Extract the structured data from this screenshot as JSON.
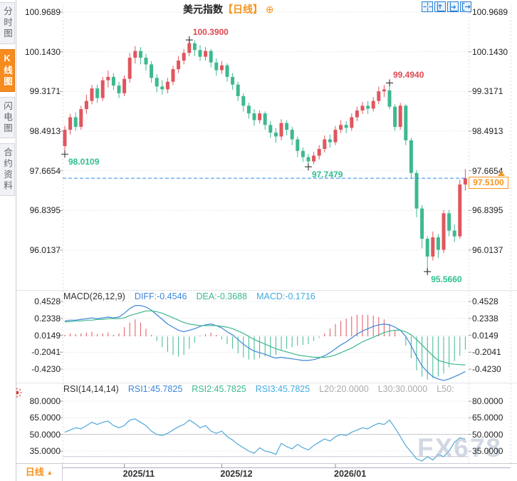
{
  "watermark": "FX678",
  "sidebar": {
    "items": [
      {
        "key": "timeshare",
        "label": "分时图",
        "active": false
      },
      {
        "key": "kline",
        "label": "K线图",
        "active": true
      },
      {
        "key": "lightning",
        "label": "闪电图",
        "active": false
      },
      {
        "key": "contract-info",
        "label": "合约资料",
        "active": false
      }
    ]
  },
  "header": {
    "instrument": "美元指数",
    "period": "【日线】",
    "plus": "⊕"
  },
  "toolbar": {
    "icons": [
      "crosshair-tool",
      "y-axis-fit",
      "x-axis-fit",
      "detach-window"
    ]
  },
  "bottom_bar": {
    "period_label": "日线",
    "arrow": "▲"
  },
  "colors": {
    "accent_orange": "#f7941d",
    "up_red": "#e0565e",
    "down_green": "#3eb98f",
    "anno_red": "#e0474f",
    "anno_teal": "#2ebf92",
    "diff_blue": "#3d86d8",
    "dea_green": "#3cb98c",
    "macd_cyan": "#41acdf",
    "rsi_line": "#4fa8d8",
    "current_line_blue": "#2f8be4",
    "muted_gray": "#aaaaaa"
  },
  "chart_data": [
    {
      "type": "candlestick",
      "panel": "price",
      "y_axis_labels": [
        "100.9689",
        "100.1430",
        "99.3171",
        "98.4913",
        "97.6654",
        "96.8395",
        "96.0137"
      ],
      "x_axis_ticks": [
        {
          "label": "2025/11",
          "index": 11
        },
        {
          "label": "2025/12",
          "index": 29
        },
        {
          "label": "2026/01",
          "index": 50
        }
      ],
      "current_price": "97.5100",
      "annotations": [
        {
          "text": "100.3900",
          "index": 23,
          "price": 100.39,
          "direction": "up"
        },
        {
          "text": "98.0109",
          "index": 0,
          "price": 98.0109,
          "direction": "down"
        },
        {
          "text": "99.4940",
          "index": 60,
          "price": 99.494,
          "direction": "up"
        },
        {
          "text": "97.7479",
          "index": 45,
          "price": 97.7479,
          "direction": "down"
        },
        {
          "text": "95.5660",
          "index": 67,
          "price": 95.566,
          "direction": "down"
        }
      ],
      "candles_ohlc": [
        [
          98.18,
          98.6,
          98.0109,
          98.52
        ],
        [
          98.52,
          98.85,
          98.42,
          98.78
        ],
        [
          98.78,
          98.88,
          98.5,
          98.58
        ],
        [
          98.58,
          99.02,
          98.52,
          98.95
        ],
        [
          98.95,
          99.25,
          98.85,
          99.12
        ],
        [
          99.12,
          99.45,
          99.05,
          99.38
        ],
        [
          99.38,
          99.46,
          99.08,
          99.18
        ],
        [
          99.18,
          99.62,
          99.12,
          99.55
        ],
        [
          99.55,
          99.75,
          99.4,
          99.62
        ],
        [
          99.62,
          99.7,
          99.35,
          99.44
        ],
        [
          99.44,
          99.52,
          99.18,
          99.28
        ],
        [
          99.28,
          99.65,
          99.22,
          99.58
        ],
        [
          99.58,
          100.12,
          99.5,
          100.02
        ],
        [
          100.02,
          100.26,
          99.9,
          100.16
        ],
        [
          100.16,
          100.24,
          99.88,
          100.02
        ],
        [
          100.02,
          100.1,
          99.75,
          99.88
        ],
        [
          99.88,
          99.95,
          99.5,
          99.6
        ],
        [
          99.6,
          99.68,
          99.3,
          99.42
        ],
        [
          99.42,
          99.55,
          99.25,
          99.36
        ],
        [
          99.36,
          99.6,
          99.28,
          99.52
        ],
        [
          99.52,
          99.85,
          99.45,
          99.78
        ],
        [
          99.78,
          100.05,
          99.7,
          99.96
        ],
        [
          99.96,
          100.2,
          99.88,
          100.12
        ],
        [
          100.12,
          100.39,
          100.05,
          100.32
        ],
        [
          100.32,
          100.38,
          100.05,
          100.18
        ],
        [
          100.18,
          100.28,
          99.95,
          100.04
        ],
        [
          100.04,
          100.24,
          99.96,
          100.16
        ],
        [
          100.16,
          100.2,
          99.82,
          99.92
        ],
        [
          99.92,
          100.0,
          99.65,
          99.76
        ],
        [
          99.76,
          99.95,
          99.68,
          99.86
        ],
        [
          99.86,
          99.9,
          99.52,
          99.62
        ],
        [
          99.62,
          99.7,
          99.35,
          99.46
        ],
        [
          99.46,
          99.52,
          99.12,
          99.22
        ],
        [
          99.22,
          99.28,
          98.9,
          99.02
        ],
        [
          99.02,
          99.08,
          98.75,
          98.86
        ],
        [
          98.86,
          98.95,
          98.6,
          98.72
        ],
        [
          98.72,
          98.92,
          98.65,
          98.86
        ],
        [
          98.86,
          98.9,
          98.52,
          98.62
        ],
        [
          98.62,
          98.7,
          98.35,
          98.46
        ],
        [
          98.46,
          98.55,
          98.25,
          98.38
        ],
        [
          98.38,
          98.74,
          98.3,
          98.66
        ],
        [
          98.66,
          98.72,
          98.4,
          98.52
        ],
        [
          98.52,
          98.58,
          98.2,
          98.32
        ],
        [
          98.32,
          98.38,
          97.95,
          98.08
        ],
        [
          98.08,
          98.15,
          97.85,
          97.95
        ],
        [
          97.95,
          98.02,
          97.7479,
          97.86
        ],
        [
          97.86,
          98.06,
          97.8,
          97.98
        ],
        [
          97.98,
          98.2,
          97.9,
          98.12
        ],
        [
          98.12,
          98.4,
          98.05,
          98.32
        ],
        [
          98.32,
          98.42,
          98.15,
          98.26
        ],
        [
          98.26,
          98.6,
          98.2,
          98.52
        ],
        [
          98.52,
          98.72,
          98.45,
          98.62
        ],
        [
          98.62,
          98.7,
          98.45,
          98.56
        ],
        [
          98.56,
          98.86,
          98.5,
          98.78
        ],
        [
          98.78,
          99.0,
          98.7,
          98.92
        ],
        [
          98.92,
          99.1,
          98.85,
          99.02
        ],
        [
          99.02,
          99.12,
          98.85,
          98.96
        ],
        [
          98.96,
          99.2,
          98.9,
          99.12
        ],
        [
          99.12,
          99.42,
          99.05,
          99.32
        ],
        [
          99.32,
          99.45,
          99.2,
          99.36
        ],
        [
          99.34,
          99.494,
          98.95,
          99.0
        ],
        [
          99.0,
          99.05,
          98.5,
          98.58
        ],
        [
          98.58,
          99.08,
          98.52,
          99.02
        ],
        [
          99.02,
          99.05,
          98.2,
          98.3
        ],
        [
          98.3,
          98.35,
          97.5,
          97.62
        ],
        [
          97.62,
          97.68,
          96.7,
          96.88
        ],
        [
          96.88,
          96.95,
          96.05,
          96.25
        ],
        [
          96.25,
          96.3,
          95.566,
          95.88
        ],
        [
          95.88,
          96.4,
          95.8,
          96.28
        ],
        [
          96.28,
          96.35,
          95.85,
          96.02
        ],
        [
          96.02,
          96.85,
          95.95,
          96.78
        ],
        [
          96.78,
          96.85,
          96.3,
          96.42
        ],
        [
          96.42,
          96.55,
          96.18,
          96.3
        ],
        [
          96.3,
          97.48,
          96.25,
          97.38
        ],
        [
          97.38,
          97.7,
          97.25,
          97.51
        ]
      ]
    },
    {
      "type": "macd",
      "title": "MACD(26,12,9)",
      "legend": [
        {
          "text": "DIFF:-0.4546",
          "color_key": "diff_blue"
        },
        {
          "text": "DEA:-0.3688",
          "color_key": "dea_green"
        },
        {
          "text": "MACD:-0.1716",
          "color_key": "macd_cyan"
        }
      ],
      "y_axis_labels": [
        "0.4528",
        "0.2338",
        "0.0149",
        "-0.2041",
        "-0.4230"
      ],
      "diff": [
        0.2,
        0.21,
        0.21,
        0.22,
        0.23,
        0.24,
        0.23,
        0.24,
        0.25,
        0.24,
        0.25,
        0.3,
        0.36,
        0.4,
        0.4,
        0.38,
        0.34,
        0.28,
        0.22,
        0.16,
        0.12,
        0.08,
        0.06,
        0.08,
        0.1,
        0.13,
        0.15,
        0.16,
        0.14,
        0.11,
        0.06,
        0.02,
        -0.04,
        -0.1,
        -0.15,
        -0.19,
        -0.21,
        -0.23,
        -0.26,
        -0.28,
        -0.27,
        -0.28,
        -0.29,
        -0.3,
        -0.31,
        -0.31,
        -0.3,
        -0.28,
        -0.25,
        -0.21,
        -0.16,
        -0.11,
        -0.07,
        -0.02,
        0.03,
        0.07,
        0.1,
        0.13,
        0.15,
        0.16,
        0.15,
        0.12,
        0.08,
        0.0,
        -0.12,
        -0.26,
        -0.38,
        -0.46,
        -0.52,
        -0.55,
        -0.57,
        -0.55,
        -0.52,
        -0.49,
        -0.4546
      ],
      "dea": [
        0.19,
        0.19,
        0.2,
        0.2,
        0.21,
        0.21,
        0.22,
        0.22,
        0.23,
        0.23,
        0.23,
        0.24,
        0.27,
        0.29,
        0.31,
        0.33,
        0.33,
        0.32,
        0.3,
        0.27,
        0.24,
        0.21,
        0.18,
        0.16,
        0.15,
        0.14,
        0.14,
        0.14,
        0.14,
        0.13,
        0.12,
        0.1,
        0.07,
        0.04,
        0.0,
        -0.04,
        -0.07,
        -0.1,
        -0.13,
        -0.16,
        -0.18,
        -0.2,
        -0.22,
        -0.24,
        -0.25,
        -0.26,
        -0.27,
        -0.27,
        -0.27,
        -0.26,
        -0.24,
        -0.21,
        -0.18,
        -0.15,
        -0.11,
        -0.07,
        -0.04,
        -0.01,
        0.02,
        0.05,
        0.07,
        0.08,
        0.08,
        0.06,
        0.02,
        -0.04,
        -0.11,
        -0.18,
        -0.25,
        -0.31,
        -0.33,
        -0.35,
        -0.36,
        -0.365,
        -0.3688
      ],
      "histogram": [
        0.02,
        0.04,
        0.03,
        0.04,
        0.05,
        0.06,
        0.03,
        0.04,
        0.05,
        0.02,
        0.04,
        0.12,
        0.18,
        0.22,
        0.18,
        0.1,
        0.02,
        -0.06,
        -0.14,
        -0.2,
        -0.24,
        -0.26,
        -0.24,
        -0.16,
        -0.08,
        0.01,
        0.03,
        0.05,
        0.02,
        -0.04,
        -0.1,
        -0.16,
        -0.22,
        -0.27,
        -0.3,
        -0.3,
        -0.28,
        -0.26,
        -0.25,
        -0.24,
        -0.18,
        -0.16,
        -0.14,
        -0.12,
        -0.11,
        -0.1,
        -0.06,
        -0.02,
        0.04,
        0.1,
        0.16,
        0.2,
        0.23,
        0.26,
        0.28,
        0.28,
        0.28,
        0.27,
        0.25,
        0.22,
        0.16,
        0.08,
        0.0,
        -0.12,
        -0.28,
        -0.44,
        -0.52,
        -0.56,
        -0.54,
        -0.52,
        -0.48,
        -0.4,
        -0.32,
        -0.25,
        -0.1716
      ]
    },
    {
      "type": "rsi",
      "title": "RSI(14,14,14)",
      "legend": [
        {
          "text": "RSI1:45.7825",
          "color_key": "diff_blue"
        },
        {
          "text": "RSI2:45.7825",
          "color_key": "dea_green"
        },
        {
          "text": "RSI3:45.7825",
          "color_key": "macd_cyan"
        },
        {
          "text": "L20:20.0000",
          "color_key": "muted_gray"
        },
        {
          "text": "L30:30.0000",
          "color_key": "muted_gray"
        },
        {
          "text": "L50:",
          "color_key": "muted_gray"
        }
      ],
      "y_axis_labels": [
        "80.0000",
        "65.0000",
        "50.0000",
        "35.0000"
      ],
      "reference_levels": [
        50,
        30
      ],
      "rsi": [
        52,
        54,
        56,
        55,
        58,
        61,
        59,
        61,
        62,
        58,
        56,
        58,
        63,
        64,
        61,
        58,
        53,
        50,
        49,
        51,
        54,
        57,
        59,
        63,
        60,
        56,
        58,
        53,
        51,
        53,
        48,
        45,
        41,
        38,
        35,
        33,
        38,
        35,
        34,
        32,
        42,
        39,
        37,
        41,
        38,
        36,
        40,
        43,
        46,
        44,
        48,
        50,
        49,
        52,
        54,
        56,
        55,
        58,
        60,
        59,
        63,
        56,
        48,
        40,
        34,
        28,
        26,
        30,
        27,
        32,
        30,
        35,
        43,
        47,
        45.78
      ]
    }
  ]
}
